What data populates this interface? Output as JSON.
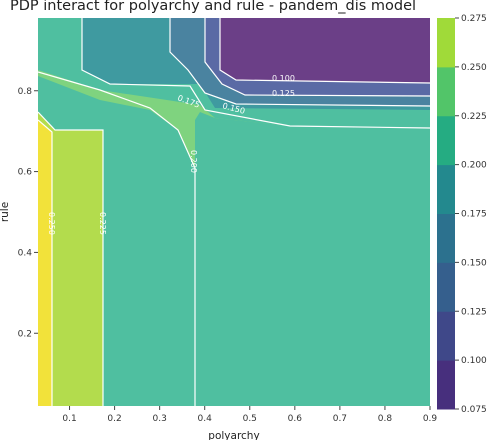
{
  "chart_data": {
    "type": "contour",
    "title": "PDP interact for polyarchy and rule - pandem_dis model",
    "xlabel": "polyarchy",
    "ylabel": "rule",
    "xlim": [
      0.03,
      0.9
    ],
    "ylim": [
      0.02,
      0.98
    ],
    "x_ticks": [
      "0.1",
      "0.2",
      "0.3",
      "0.4",
      "0.5",
      "0.6",
      "0.7",
      "0.8",
      "0.9"
    ],
    "y_ticks": [
      "0.2",
      "0.4",
      "0.6",
      "0.8"
    ],
    "colorbar": {
      "levels": [
        0.075,
        0.1,
        0.125,
        0.15,
        0.175,
        0.2,
        0.225,
        0.25,
        0.275
      ],
      "tick_labels": [
        "0.075",
        "0.100",
        "0.125",
        "0.150",
        "0.175",
        "0.200",
        "0.225",
        "0.250",
        "0.275"
      ],
      "colors": [
        "#472f7d",
        "#3f4889",
        "#355f8d",
        "#2c718e",
        "#23898e",
        "#25ac82",
        "#52c569",
        "#a0da39",
        "#fde725"
      ]
    },
    "contour_labels": [
      "0.100",
      "0.125",
      "0.150",
      "0.175",
      "0.200",
      "0.225",
      "0.250"
    ]
  }
}
